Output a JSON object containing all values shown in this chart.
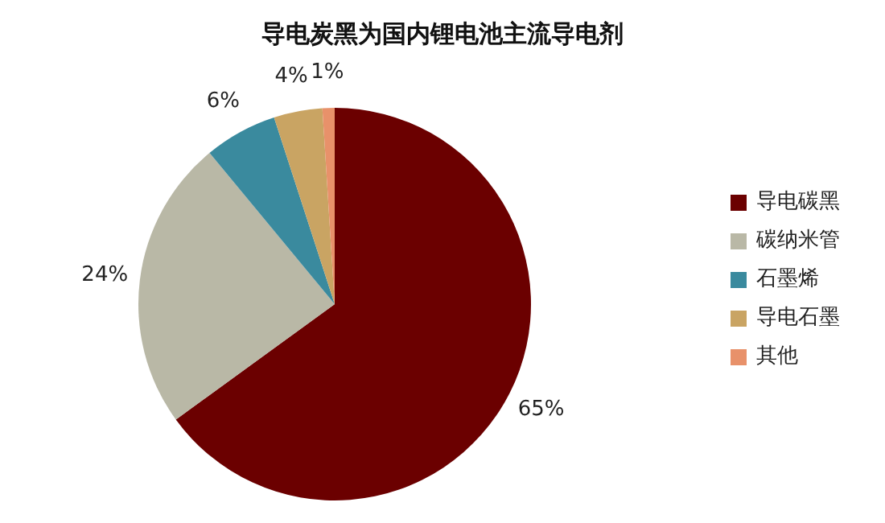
{
  "chart_data": {
    "type": "pie",
    "title": "导电炭黑为国内锂电池主流导电剂",
    "categories": [
      "导电碳黑",
      "碳纳米管",
      "石墨烯",
      "导电石墨",
      "其他"
    ],
    "values": [
      65,
      24,
      6,
      4,
      1
    ],
    "value_labels": [
      "65%",
      "24%",
      "6%",
      "4%",
      "1%"
    ],
    "colors": [
      "#6b0000",
      "#b9b8a6",
      "#3a8a9e",
      "#c9a463",
      "#e8916a"
    ],
    "legend": "right"
  }
}
